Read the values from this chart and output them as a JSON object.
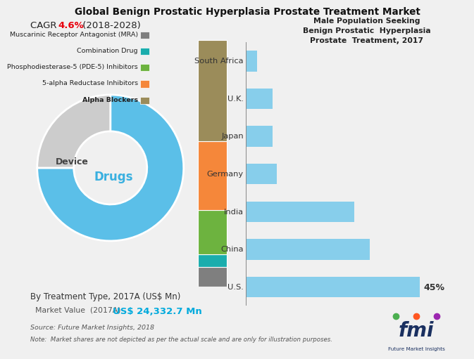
{
  "title": "Global Benign Prostatic Hyperplasia Prostate Treatment Market",
  "cagr_text": "CAGR ",
  "cagr_value": "4.6%",
  "cagr_period": " (2018-2028)",
  "right_title": "Male Population Seeking\nBenign Prostatic  Hyperplasia\nProstate  Treatment, 2017",
  "bg_color": "#f0f0f0",
  "donut_colors": [
    "#5bbfe8",
    "#cccccc"
  ],
  "donut_labels": [
    "Drugs",
    "Device"
  ],
  "donut_values": [
    75,
    25
  ],
  "bar_categories": [
    "South Africa",
    "U.K.",
    "Japan",
    "Germany",
    "India",
    "China",
    "U.S."
  ],
  "bar_values": [
    3,
    7,
    7,
    8,
    28,
    32,
    45
  ],
  "bar_color_top": "#add8e6",
  "bar_color_bottom": "#87ceeb",
  "bar_label": "45%",
  "stacked_colors": [
    "#7f7f7f",
    "#1aadad",
    "#6db33f",
    "#f5873a",
    "#9b8c5a"
  ],
  "stacked_labels": [
    "Muscarinic Receptor Antagonist (MRA)",
    "Combination Drug",
    "Phosphodiesterase-5 (PDE-5) Inhibitors",
    "5-alpha Reductase Inhibitors",
    "Alpha Blockers"
  ],
  "stacked_values": [
    8,
    5,
    18,
    28,
    41
  ],
  "bottom_label1": "By Treatment Type, 2017A (US$ Mn)",
  "bottom_label2": "Market Value  (2017A)",
  "bottom_value": "US$ 24,332.7 Mn",
  "source_text": "Source: Future Market Insights, 2018",
  "note_text": "Note:  Market shares are not depicted as per the actual scale and are only for illustration purposes."
}
